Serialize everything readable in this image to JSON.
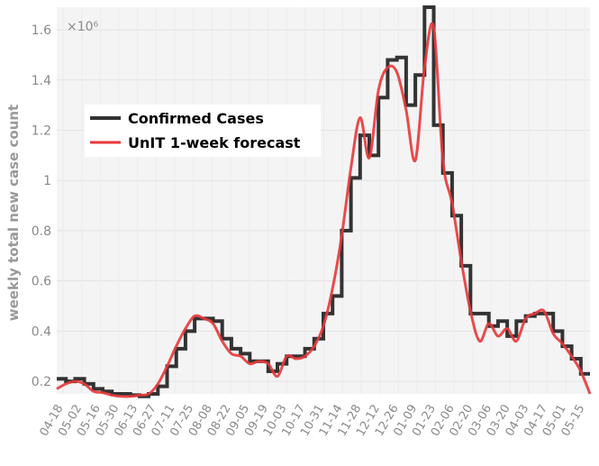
{
  "chart_data": {
    "type": "line",
    "ylabel": "weekly total new case count",
    "y_multiplier": "×10⁶",
    "y_ticks": [
      0.2,
      0.4,
      0.6,
      0.8,
      1.0,
      1.2,
      1.4,
      1.6
    ],
    "y_tick_labels": [
      "0.2",
      "0.4",
      "0.6",
      "0.8",
      "1",
      "1.2",
      "1.4",
      "1.6"
    ],
    "ylim": [
      0.15,
      1.69
    ],
    "x_tick_labels": [
      "04-18",
      "05-02",
      "05-16",
      "05-30",
      "06-13",
      "06-27",
      "07-11",
      "07-25",
      "08-08",
      "08-22",
      "09-05",
      "09-19",
      "10-03",
      "10-17",
      "10-31",
      "11-14",
      "11-28",
      "12-12",
      "12-26",
      "01-09",
      "01-23",
      "02-06",
      "02-20",
      "03-06",
      "03-20",
      "04-03",
      "04-17",
      "05-01",
      "05-15"
    ],
    "grid": true,
    "legend_position": "upper-left",
    "series": [
      {
        "name": "Confirmed Cases",
        "style": "step",
        "color": "#333333",
        "values": [
          0.21,
          0.2,
          0.21,
          0.19,
          0.17,
          0.16,
          0.15,
          0.15,
          0.145,
          0.14,
          0.15,
          0.18,
          0.26,
          0.33,
          0.4,
          0.45,
          0.45,
          0.44,
          0.37,
          0.33,
          0.31,
          0.28,
          0.28,
          0.24,
          0.27,
          0.3,
          0.3,
          0.33,
          0.37,
          0.47,
          0.54,
          0.8,
          1.01,
          1.18,
          1.1,
          1.33,
          1.48,
          1.49,
          1.3,
          1.42,
          1.69,
          1.22,
          1.03,
          0.86,
          0.66,
          0.47,
          0.47,
          0.42,
          0.44,
          0.38,
          0.44,
          0.46,
          0.47,
          0.47,
          0.4,
          0.34,
          0.29,
          0.23
        ]
      },
      {
        "name": "UnIT 1-week forecast",
        "style": "smooth",
        "color": "#e8373a",
        "values": [
          0.17,
          0.19,
          0.2,
          0.19,
          0.16,
          0.155,
          0.145,
          0.14,
          0.14,
          0.145,
          0.15,
          0.19,
          0.26,
          0.34,
          0.41,
          0.46,
          0.45,
          0.43,
          0.36,
          0.31,
          0.3,
          0.27,
          0.28,
          0.27,
          0.22,
          0.3,
          0.29,
          0.3,
          0.34,
          0.42,
          0.57,
          0.78,
          1.05,
          1.25,
          1.09,
          1.36,
          1.45,
          1.43,
          1.28,
          1.08,
          1.45,
          1.61,
          1.08,
          0.91,
          0.68,
          0.48,
          0.36,
          0.43,
          0.38,
          0.41,
          0.36,
          0.45,
          0.47,
          0.48,
          0.39,
          0.35,
          0.3,
          0.24,
          0.15
        ]
      }
    ]
  }
}
